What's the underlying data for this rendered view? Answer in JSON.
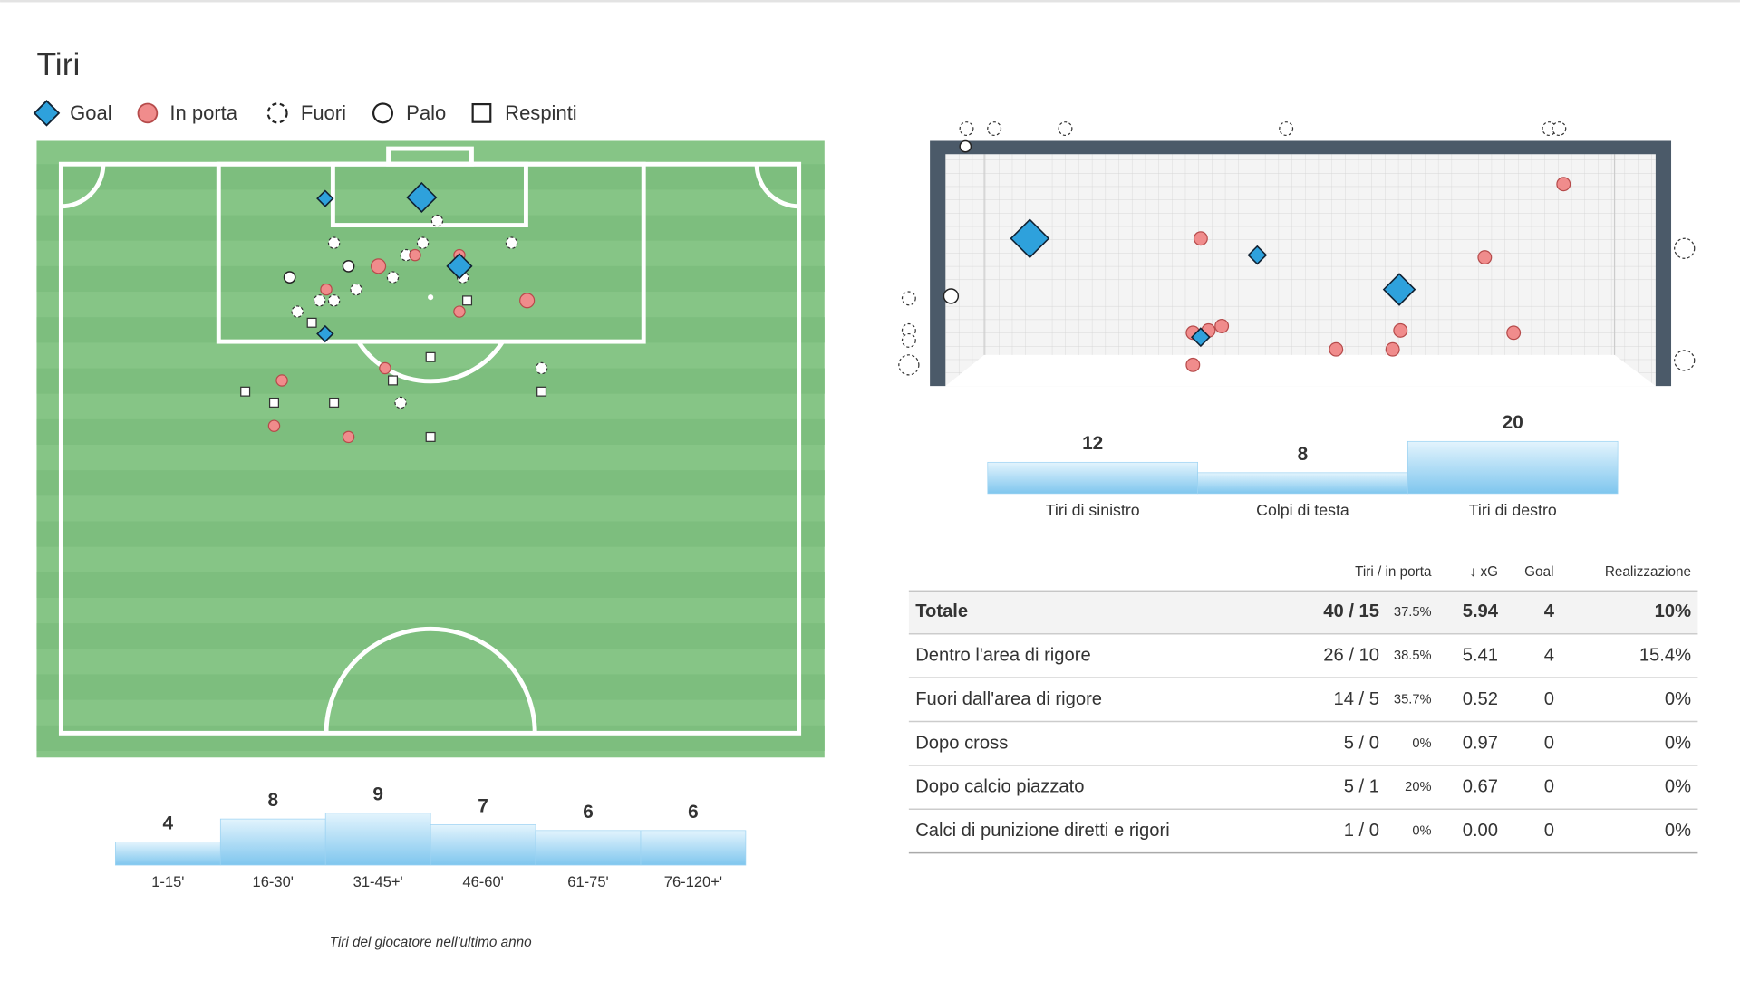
{
  "title": "Tiri",
  "legend": [
    "Goal",
    "In porta",
    "Fuori",
    "Palo",
    "Respinti"
  ],
  "chart_data": [
    {
      "type": "bar",
      "categories": [
        "1-15'",
        "16-30'",
        "31-45+'",
        "46-60'",
        "61-75'",
        "76-120+'"
      ],
      "values": [
        4,
        8,
        9,
        7,
        6,
        6
      ],
      "color": "#9dd3f2"
    },
    {
      "type": "bar",
      "categories": [
        "Tiri di sinistro",
        "Colpi di testa",
        "Tiri di destro"
      ],
      "values": [
        12,
        8,
        20
      ],
      "color": "#9dd3f2"
    }
  ],
  "table": {
    "header": [
      "Tiri / in porta",
      "↓ xG",
      "Goal",
      "Realizzazione"
    ],
    "rows": [
      [
        "Totale",
        "40 / 15",
        "37.5%",
        "5.94",
        "4",
        "10%"
      ],
      [
        "Dentro l'area di rigore",
        "26 / 10",
        "38.5%",
        "5.41",
        "4",
        "15.4%"
      ],
      [
        "Fuori dall'area di rigore",
        "14 / 5",
        "35.7%",
        "0.52",
        "0",
        "0%"
      ],
      [
        "Dopo cross",
        "5 / 0",
        "0%",
        "0.97",
        "0",
        "0%"
      ],
      [
        "Dopo calcio piazzato",
        "5 / 1",
        "20%",
        "0.67",
        "0",
        "0%"
      ],
      [
        "Calci di punizione diretti e rigori",
        "1 / 0",
        "0%",
        "0.00",
        "0",
        "0%"
      ]
    ]
  },
  "caption": "Tiri del giocatore nell'ultimo anno"
}
